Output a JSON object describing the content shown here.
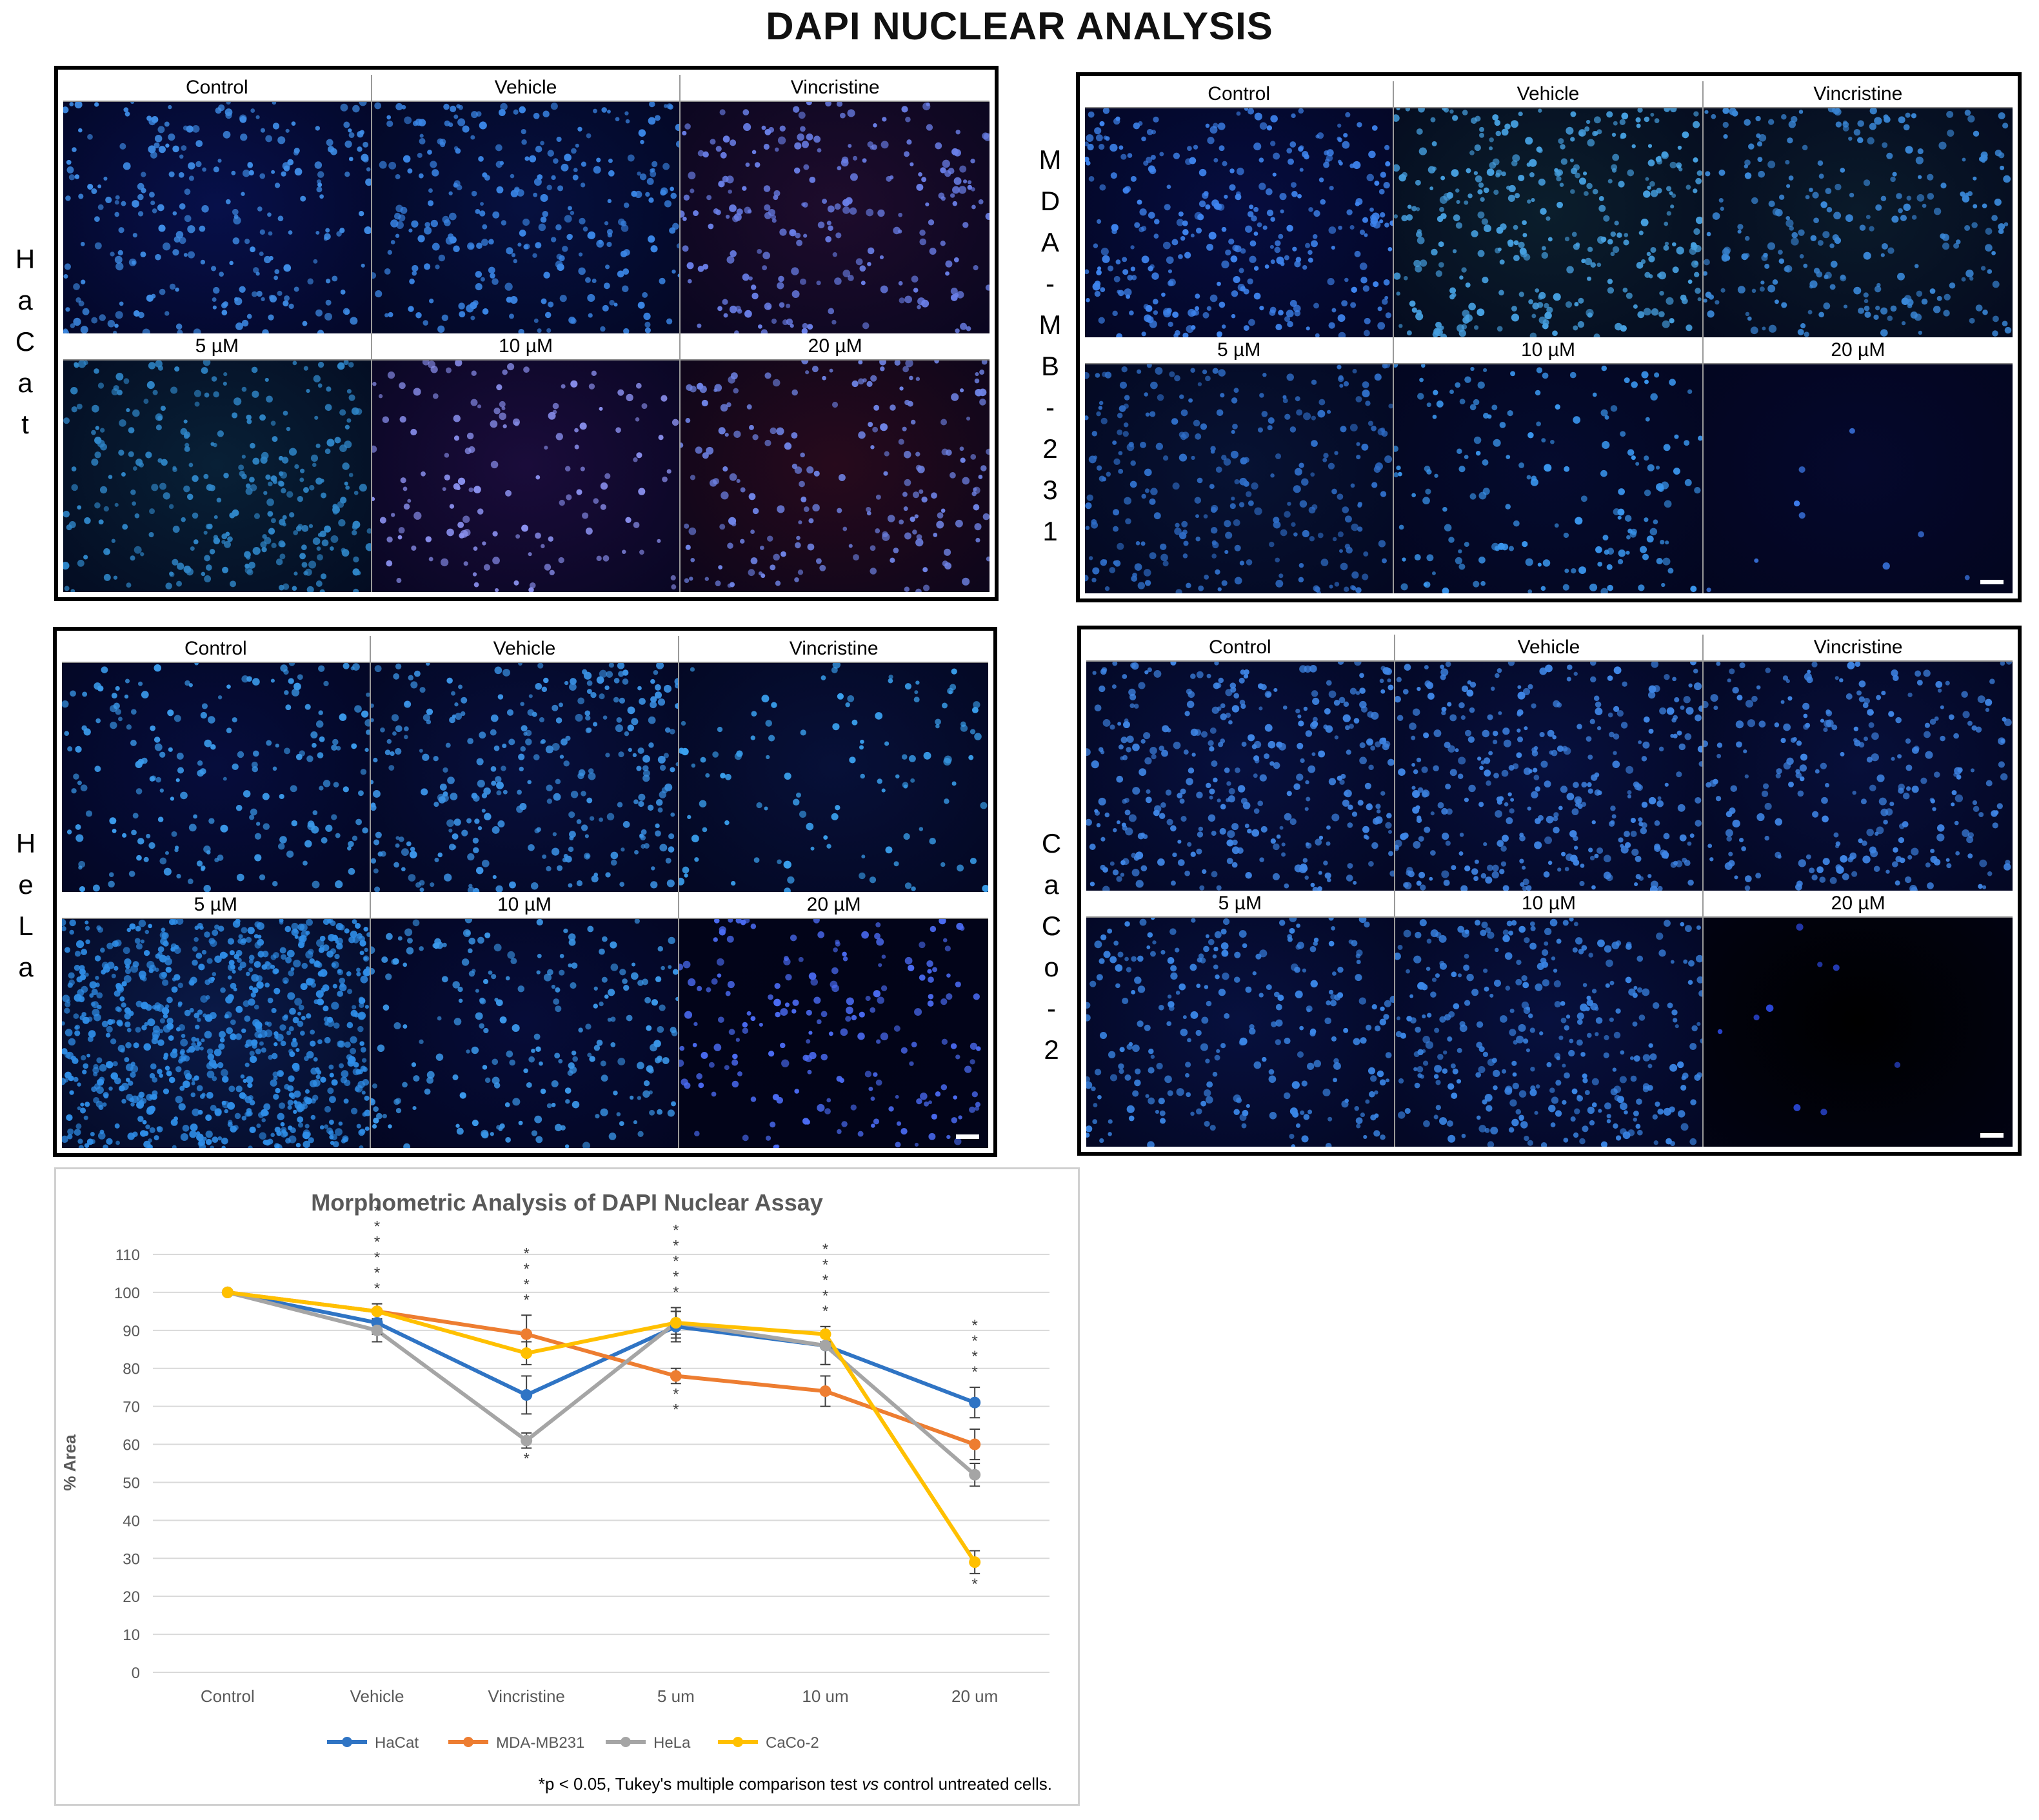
{
  "title": "DAPI NUCLEAR ANALYSIS",
  "panels": [
    {
      "cell_line": "HaCat",
      "side_label": [
        "H",
        "a",
        "C",
        "a",
        "t"
      ],
      "labels": [
        "Control",
        "Vehicle",
        "Vincristine",
        "5 µM",
        "10 µM",
        "20 µM"
      ],
      "tints": [
        "#07104a",
        "#06103f",
        "#1e0c2c",
        "#082036",
        "#1a0c3a",
        "#270a1c"
      ],
      "dot_colors": [
        "#3f8ee8",
        "#3a86e6",
        "#6a7fe8",
        "#2f86c8",
        "#8a90ee",
        "#6f84e6"
      ],
      "counts": [
        260,
        280,
        230,
        300,
        140,
        200
      ],
      "scale_bar": false
    },
    {
      "cell_line": "MDA-MB-231",
      "side_label": [
        "M",
        "D",
        "A",
        "-",
        "M",
        "B",
        "-",
        "2",
        "3",
        "1"
      ],
      "labels": [
        "Control",
        "Vehicle",
        "Vincristine",
        "5 µM",
        "10 µM",
        "20 µM"
      ],
      "tints": [
        "#060d40",
        "#0b1e2c",
        "#0a1a2a",
        "#071233",
        "#050b2e",
        "#05082c"
      ],
      "dot_colors": [
        "#3e84ee",
        "#46a0e0",
        "#3a88d8",
        "#2f6ec8",
        "#3a96ee",
        "#3f7ef0"
      ],
      "counts": [
        330,
        340,
        260,
        270,
        170,
        9
      ],
      "scale_bar": true
    },
    {
      "cell_line": "HeLa",
      "side_label": [
        "H",
        "e",
        "L",
        "a"
      ],
      "labels": [
        "Control",
        "Vehicle",
        "Vincristine",
        "5 µM",
        "10 µM",
        "20 µM"
      ],
      "tints": [
        "#060d3c",
        "#070f3c",
        "#071038",
        "#0a1a48",
        "#060c38",
        "#020418"
      ],
      "dot_colors": [
        "#3b9bec",
        "#3b93e6",
        "#3aa0ee",
        "#2f8ee8",
        "#3b98ea",
        "#4b6cf4"
      ],
      "counts": [
        200,
        300,
        110,
        800,
        220,
        190
      ],
      "scale_bar": true
    },
    {
      "cell_line": "CaCo-2",
      "side_label": [
        "C",
        "a",
        "C",
        "o",
        "-",
        "2"
      ],
      "labels": [
        "Control",
        "Vehicle",
        "Vincristine",
        "5 µM",
        "10 µM",
        "20 µM"
      ],
      "tints": [
        "#07103e",
        "#07103e",
        "#070f3a",
        "#07103e",
        "#07103e",
        "#000000"
      ],
      "dot_colors": [
        "#3f86e6",
        "#3f86e6",
        "#3f86e6",
        "#3a86e6",
        "#3a86e6",
        "#3050f0"
      ],
      "counts": [
        340,
        340,
        260,
        260,
        330,
        9
      ],
      "scale_bar": true
    }
  ],
  "chart_data": {
    "type": "line",
    "title": "Morphometric Analysis of DAPI Nuclear Assay",
    "xlabel": "",
    "ylabel": "% Area",
    "categories": [
      "Control",
      "Vehicle",
      "Vincristine",
      "5 um",
      "10 um",
      "20 um"
    ],
    "ylim": [
      0,
      110
    ],
    "yticks": [
      0,
      10,
      20,
      30,
      40,
      50,
      60,
      70,
      80,
      90,
      100,
      110
    ],
    "grid": true,
    "legend": "bottom",
    "series": [
      {
        "name": "HaCat",
        "color": "#2f74c4",
        "values": [
          100,
          92,
          73,
          91,
          86,
          71
        ],
        "errors": [
          0,
          3,
          5,
          4,
          5,
          4
        ]
      },
      {
        "name": "MDA-MB231",
        "color": "#ed7d31",
        "values": [
          100,
          95,
          89,
          78,
          74,
          60
        ],
        "errors": [
          0,
          2,
          5,
          2,
          4,
          4
        ]
      },
      {
        "name": "HeLa",
        "color": "#a5a5a5",
        "values": [
          100,
          90,
          61,
          92,
          86,
          52
        ],
        "errors": [
          0,
          3,
          2,
          4,
          5,
          3
        ]
      },
      {
        "name": "CaCo-2",
        "color": "#ffc000",
        "values": [
          100,
          95,
          84,
          92,
          89,
          29
        ],
        "errors": [
          0,
          2,
          3,
          3,
          2,
          3
        ]
      }
    ],
    "annotations": [
      {
        "category": "Vehicle",
        "position": "above",
        "stars": 6
      },
      {
        "category": "Vincristine",
        "position": "above",
        "stars": 4
      },
      {
        "category": "Vincristine",
        "position": "below",
        "stars": 1
      },
      {
        "category": "5 um",
        "position": "above",
        "stars": 5
      },
      {
        "category": "5 um",
        "position": "below",
        "stars": 2
      },
      {
        "category": "10 um",
        "position": "above",
        "stars": 5
      },
      {
        "category": "20 um",
        "position": "above",
        "stars": 4
      },
      {
        "category": "20 um",
        "position": "below",
        "stars": 1
      }
    ],
    "star_symbol": "*",
    "footnote": {
      "pre": "*p < 0.05, Tukey's multiple comparison test ",
      "italic": "vs",
      "post": " control untreated cells."
    }
  }
}
